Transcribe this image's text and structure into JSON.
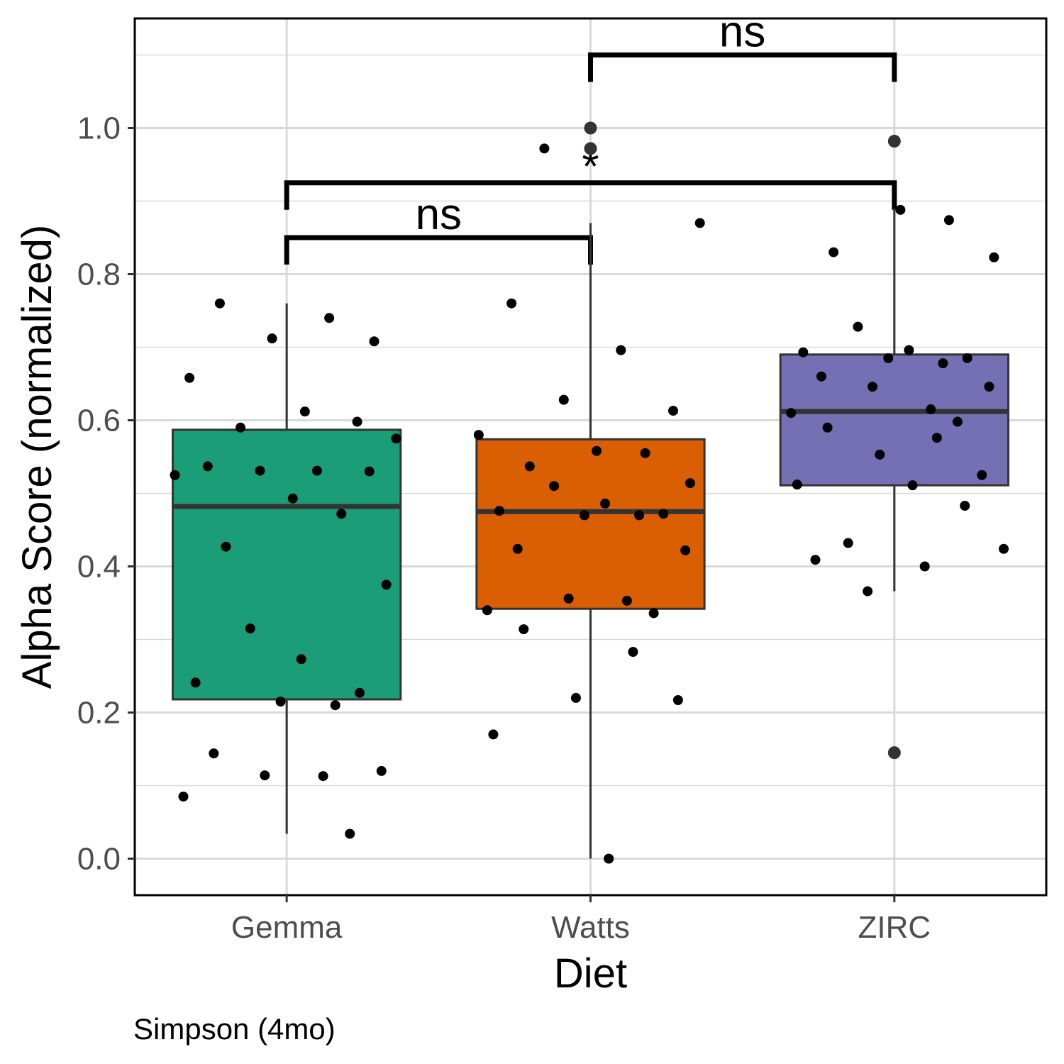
{
  "chart_data": {
    "type": "box",
    "xlabel": "Diet",
    "ylabel": "Alpha Score (normalized)",
    "caption": "Simpson (4mo)",
    "ylim": [
      -0.05,
      1.15
    ],
    "yticks": [
      0.0,
      0.2,
      0.4,
      0.6,
      0.8,
      1.0
    ],
    "ytick_labels": [
      "0.0",
      "0.2",
      "0.4",
      "0.6",
      "0.8",
      "1.0"
    ],
    "grid": true,
    "categories": [
      "Gemma",
      "Watts",
      "ZIRC"
    ],
    "colors": {
      "Gemma": "#1b9e77",
      "Watts": "#d95f02",
      "ZIRC": "#7570b3",
      "box_outline": "#333333",
      "points": "#000000",
      "grid": "#d9d9d9"
    },
    "boxes": [
      {
        "group": "Gemma",
        "q1": 0.218,
        "median": 0.482,
        "q3": 0.587,
        "whisker_low": 0.034,
        "whisker_high": 0.76,
        "outliers": []
      },
      {
        "group": "Watts",
        "q1": 0.342,
        "median": 0.475,
        "q3": 0.574,
        "whisker_low": 0.0,
        "whisker_high": 0.87,
        "outliers": [
          1.0,
          0.972
        ]
      },
      {
        "group": "ZIRC",
        "q1": 0.511,
        "median": 0.612,
        "q3": 0.69,
        "whisker_low": 0.366,
        "whisker_high": 0.89,
        "outliers": [
          0.982,
          0.145
        ]
      }
    ],
    "points": [
      {
        "group": "Gemma",
        "values": [
          0.76,
          0.74,
          0.712,
          0.708,
          0.658,
          0.612,
          0.598,
          0.59,
          0.575,
          0.537,
          0.531,
          0.531,
          0.53,
          0.525,
          0.493,
          0.472,
          0.427,
          0.375,
          0.315,
          0.273,
          0.241,
          0.227,
          0.215,
          0.21,
          0.144,
          0.12,
          0.114,
          0.113,
          0.085,
          0.034
        ]
      },
      {
        "group": "Watts",
        "values": [
          0.972,
          0.87,
          0.76,
          0.696,
          0.628,
          0.613,
          0.58,
          0.558,
          0.555,
          0.537,
          0.514,
          0.51,
          0.486,
          0.476,
          0.472,
          0.47,
          0.47,
          0.424,
          0.422,
          0.356,
          0.353,
          0.34,
          0.336,
          0.314,
          0.283,
          0.22,
          0.217,
          0.17,
          0.0
        ]
      },
      {
        "group": "ZIRC",
        "values": [
          0.888,
          0.874,
          0.83,
          0.823,
          0.728,
          0.696,
          0.693,
          0.685,
          0.685,
          0.678,
          0.66,
          0.646,
          0.646,
          0.615,
          0.61,
          0.598,
          0.59,
          0.576,
          0.553,
          0.525,
          0.512,
          0.511,
          0.483,
          0.432,
          0.424,
          0.409,
          0.4,
          0.366
        ]
      }
    ],
    "comparisons": [
      {
        "groups": [
          "Gemma",
          "Watts"
        ],
        "y": 0.85,
        "label": "ns"
      },
      {
        "groups": [
          "Gemma",
          "ZIRC"
        ],
        "y": 0.925,
        "label": "*"
      },
      {
        "groups": [
          "Watts",
          "ZIRC"
        ],
        "y": 1.1,
        "label": "ns"
      }
    ]
  }
}
